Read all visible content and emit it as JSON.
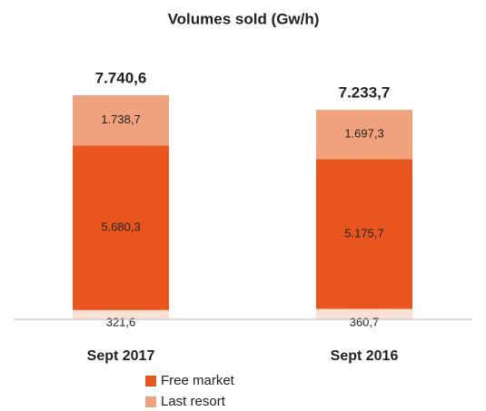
{
  "chart_data": {
    "type": "stacked_bar",
    "title": "Volumes sold (Gw/h)",
    "categories": [
      "Sept 2017",
      "Sept 2016"
    ],
    "series": [
      {
        "color": "#fbe0d4",
        "values": [
          321.6,
          360.7
        ],
        "value_labels": [
          "321,6",
          "360,7"
        ]
      },
      {
        "name": "Free market",
        "color": "#e8561e",
        "values": [
          5680.3,
          5175.7
        ],
        "value_labels": [
          "5.680,3",
          "5.175,7"
        ]
      },
      {
        "name": "Last resort",
        "color": "#f0a27c",
        "values": [
          1738.7,
          1697.3
        ],
        "value_labels": [
          "1.738,7",
          "1.697,3"
        ]
      }
    ],
    "totals": [
      7740.6,
      7233.7
    ],
    "total_labels": [
      "7.740,6",
      "7.233,7"
    ]
  }
}
